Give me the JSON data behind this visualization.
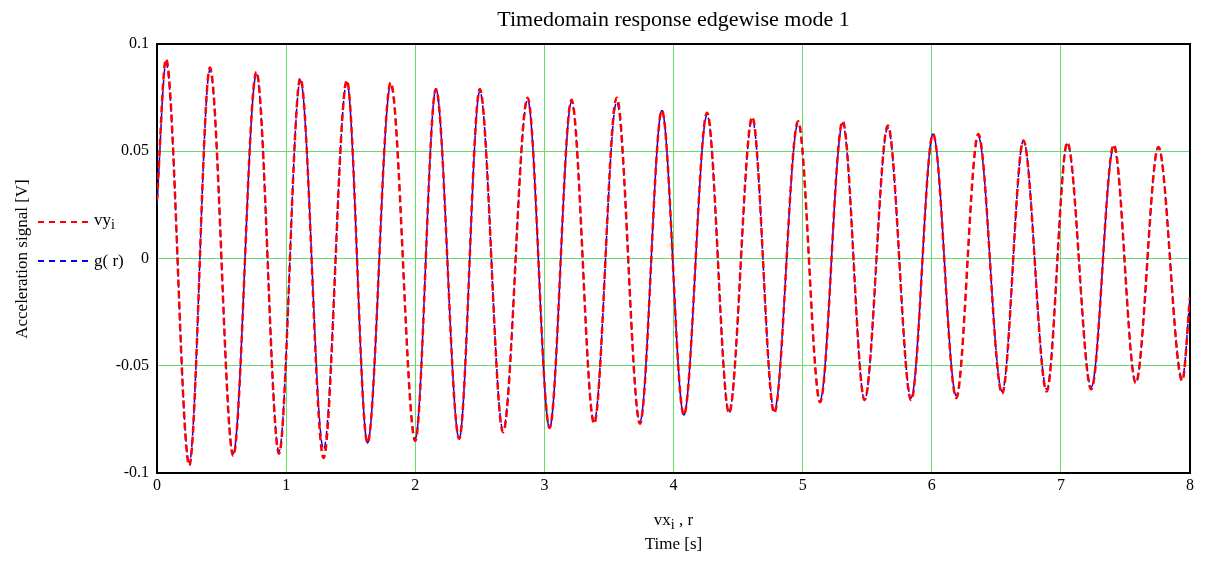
{
  "chart_data": {
    "type": "line",
    "title": "Timedomain response edgewise mode 1",
    "xlabel": "vx$_{i}$ , r\nTime [s]",
    "ylabel": "Acceleration signal [V]",
    "x": [
      0,
      0.07,
      0.25,
      0.41,
      0.59,
      0.77,
      0.945,
      1.11,
      1.29,
      1.47,
      1.63,
      1.81,
      2.0,
      2.16,
      2.34,
      2.5,
      2.68,
      2.87,
      3.04,
      3.21,
      3.385,
      3.56,
      3.74,
      3.91,
      4.08,
      4.26,
      4.43,
      4.61,
      4.78,
      4.965,
      5.135,
      5.31,
      5.48,
      5.66,
      5.84,
      6.01,
      6.19,
      6.36,
      6.545,
      6.71,
      6.89,
      7.05,
      7.235,
      7.41,
      7.58,
      7.755,
      7.94,
      8.0
    ],
    "series": [
      {
        "name": "vy$_{i}$",
        "color": "#ff0000",
        "line_style": "dashed",
        "values": [
          0.027,
          0.093,
          -0.0965,
          0.089,
          -0.092,
          0.087,
          -0.091,
          0.084,
          -0.093,
          0.083,
          -0.086,
          0.082,
          -0.085,
          0.079,
          -0.084,
          0.079,
          -0.081,
          0.075,
          -0.079,
          0.074,
          -0.077,
          0.075,
          -0.077,
          0.069,
          -0.073,
          0.068,
          -0.072,
          0.066,
          -0.072,
          0.064,
          -0.067,
          0.064,
          -0.066,
          0.062,
          -0.066,
          0.058,
          -0.065,
          0.058,
          -0.063,
          0.055,
          -0.062,
          0.054,
          -0.061,
          0.053,
          -0.058,
          0.052,
          -0.057,
          -0.018
        ]
      },
      {
        "name": "g( r)",
        "color": "#0000ff",
        "line_style": "dashed",
        "values": [
          0.025,
          0.091,
          -0.095,
          0.088,
          -0.091,
          0.086,
          -0.09,
          0.083,
          -0.089,
          0.082,
          -0.086,
          0.081,
          -0.084,
          0.079,
          -0.084,
          0.078,
          -0.08,
          0.074,
          -0.079,
          0.073,
          -0.076,
          0.073,
          -0.076,
          0.069,
          -0.073,
          0.067,
          -0.072,
          0.065,
          -0.071,
          0.063,
          -0.066,
          0.063,
          -0.066,
          0.061,
          -0.065,
          0.058,
          -0.064,
          0.057,
          -0.062,
          0.055,
          -0.061,
          0.054,
          -0.06,
          0.052,
          -0.058,
          0.052,
          -0.056,
          -0.018
        ]
      }
    ],
    "xlim": [
      0,
      8
    ],
    "xticks": [
      0,
      1,
      2,
      3,
      4,
      5,
      6,
      7,
      8
    ],
    "ylim": [
      -0.1,
      0.1
    ],
    "yticks": [
      -0.1,
      -0.05,
      0,
      0.05,
      0.1
    ],
    "grid": true,
    "legend": "left",
    "marker": "none"
  }
}
